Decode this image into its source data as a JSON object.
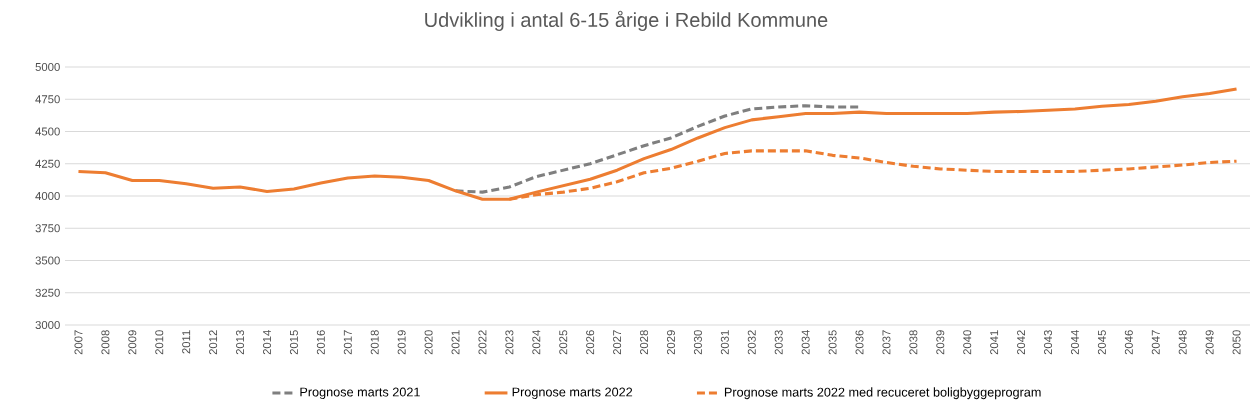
{
  "chart_data": {
    "type": "line",
    "title": "Udvikling i antal 6-15 årige i Rebild Kommune",
    "categories": [
      "2007",
      "2008",
      "2009",
      "2010",
      "2011",
      "2012",
      "2013",
      "2014",
      "2015",
      "2016",
      "2017",
      "2018",
      "2019",
      "2020",
      "2021",
      "2022",
      "2023",
      "2024",
      "2025",
      "2026",
      "2027",
      "2028",
      "2029",
      "2030",
      "2031",
      "2032",
      "2033",
      "2034",
      "2035",
      "2036",
      "2037",
      "2038",
      "2039",
      "2040",
      "2041",
      "2042",
      "2043",
      "2044",
      "2045",
      "2046",
      "2047",
      "2048",
      "2049",
      "2050"
    ],
    "series": [
      {
        "name": "Prognose marts 2021",
        "color": "#7f7f7f",
        "line_style": "dashed",
        "values": [
          null,
          null,
          null,
          null,
          null,
          null,
          null,
          null,
          null,
          null,
          null,
          null,
          null,
          null,
          4040,
          4030,
          4070,
          4150,
          4200,
          4250,
          4320,
          4390,
          4450,
          4540,
          4620,
          4675,
          4690,
          4700,
          4690,
          4690,
          null,
          null,
          null,
          null,
          null,
          null,
          null,
          null,
          null,
          null,
          null,
          null,
          null,
          null
        ]
      },
      {
        "name": "Prognose marts 2022",
        "color": "#ed7d31",
        "line_style": "solid",
        "values": [
          4190,
          4180,
          4120,
          4120,
          4095,
          4060,
          4070,
          4035,
          4055,
          4100,
          4140,
          4155,
          4145,
          4120,
          4040,
          3975,
          3975,
          4030,
          4080,
          4130,
          4200,
          4290,
          4360,
          4450,
          4530,
          4590,
          4615,
          4640,
          4640,
          4650,
          4640,
          4640,
          4640,
          4640,
          4650,
          4655,
          4665,
          4675,
          4695,
          4710,
          4735,
          4770,
          4795,
          4830
        ]
      },
      {
        "name": "Prognose marts 2022 med recuceret boligbyggeprogram",
        "color": "#ed7d31",
        "line_style": "dashed",
        "values": [
          null,
          null,
          null,
          null,
          null,
          null,
          null,
          null,
          null,
          null,
          null,
          null,
          null,
          null,
          null,
          null,
          3975,
          4010,
          4030,
          4060,
          4110,
          4180,
          4215,
          4270,
          4330,
          4350,
          4350,
          4350,
          4315,
          4295,
          4260,
          4230,
          4210,
          4200,
          4190,
          4190,
          4190,
          4190,
          4200,
          4210,
          4225,
          4240,
          4260,
          4270
        ]
      }
    ],
    "ylim": [
      3000,
      5000
    ],
    "yticks": [
      3000,
      3250,
      3500,
      3750,
      4000,
      4250,
      4500,
      4750,
      5000
    ],
    "grid": "y",
    "legend": "bottom",
    "marker": "none"
  }
}
